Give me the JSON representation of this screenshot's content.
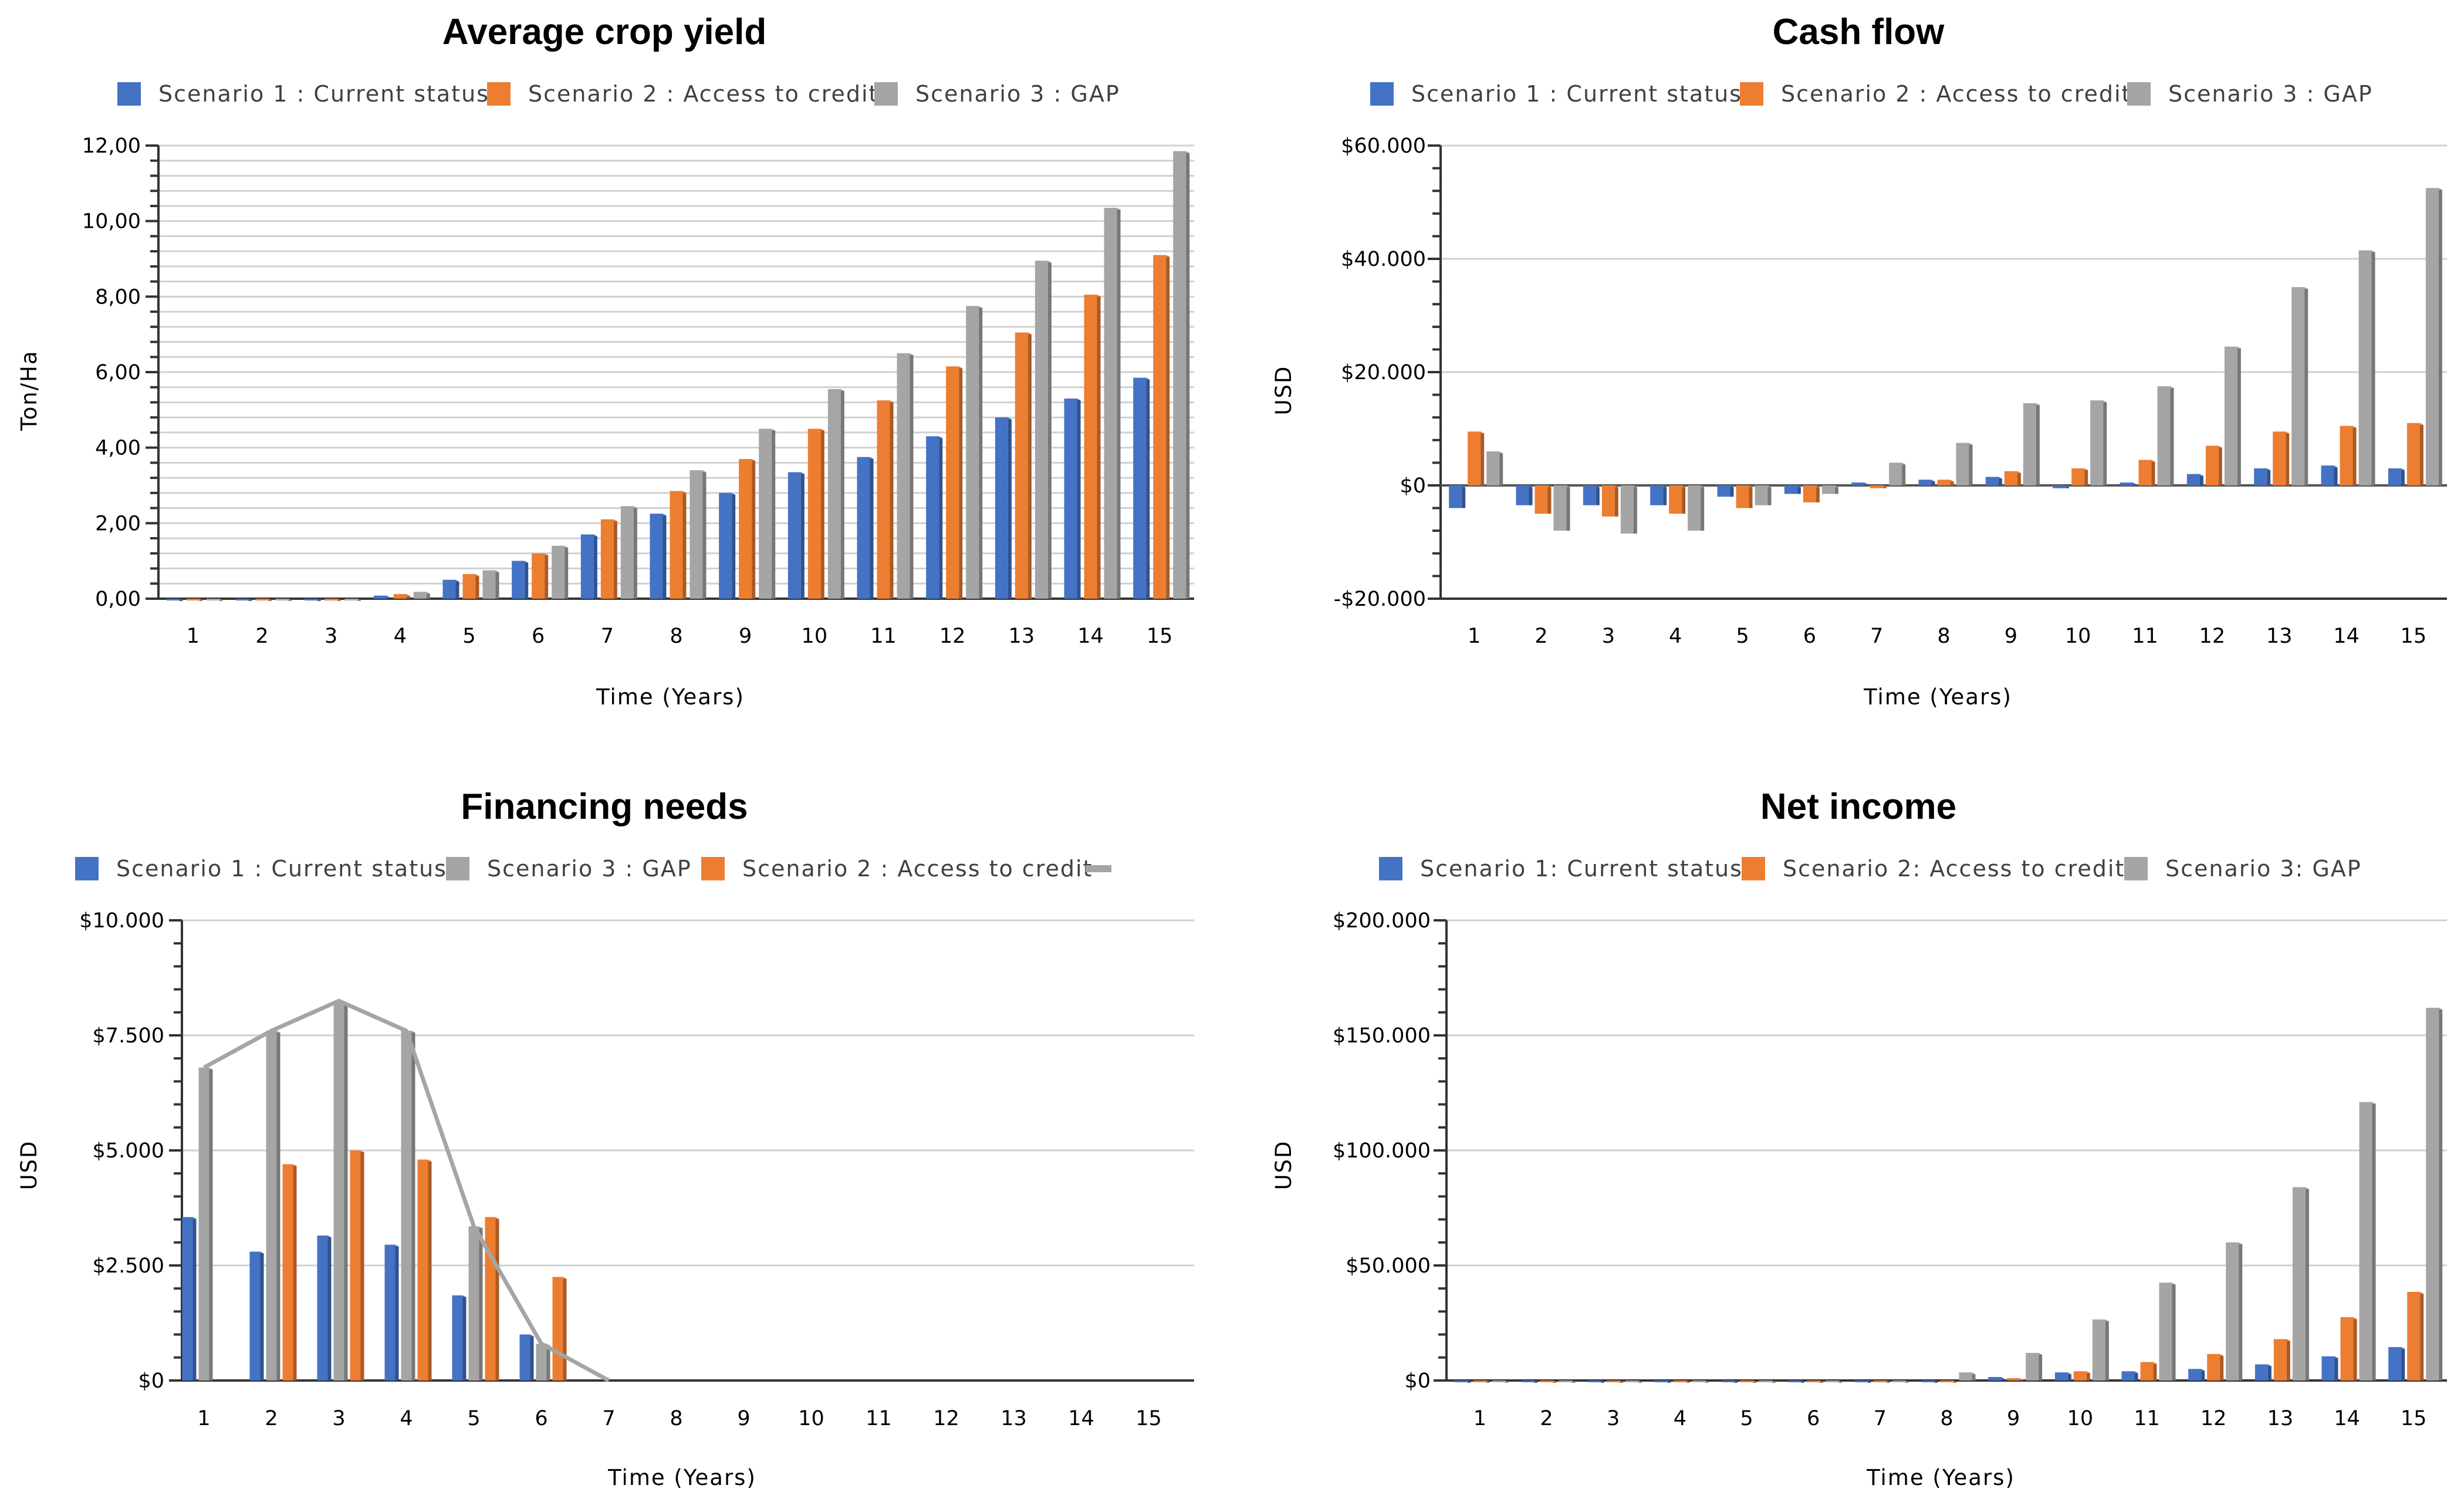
{
  "colors": {
    "scenario1": "#4472C4",
    "scenario2": "#ED7D31",
    "scenario3": "#A5A5A5"
  },
  "chart_data": [
    {
      "id": "yield",
      "type": "bar",
      "title": "Average crop yield",
      "xlabel": "Time (Years)",
      "ylabel": "Ton/Ha",
      "categories": [
        "1",
        "2",
        "3",
        "4",
        "5",
        "6",
        "7",
        "8",
        "9",
        "10",
        "11",
        "12",
        "13",
        "14",
        "15"
      ],
      "ylim": [
        0,
        12
      ],
      "yticks": [
        0,
        2,
        4,
        6,
        8,
        10,
        12
      ],
      "ytick_labels": [
        "0,00",
        "2,00",
        "4,00",
        "6,00",
        "8,00",
        "10,00",
        "12,00"
      ],
      "legend": [
        {
          "label": "Scenario 1 : Current status",
          "color": "#4472C4"
        },
        {
          "label": "Scenario 2 : Access to credit",
          "color": "#ED7D31"
        },
        {
          "label": "Scenario 3 : GAP",
          "color": "#A5A5A5"
        }
      ],
      "series": [
        {
          "name": "Scenario 1 : Current status",
          "color": "#4472C4",
          "values": [
            0,
            0,
            0,
            0.08,
            0.5,
            1.0,
            1.7,
            2.25,
            2.8,
            3.35,
            3.75,
            4.3,
            4.8,
            5.3,
            5.85
          ]
        },
        {
          "name": "Scenario 2 : Access to credit",
          "color": "#ED7D31",
          "values": [
            0,
            0,
            0,
            0.12,
            0.65,
            1.2,
            2.1,
            2.85,
            3.7,
            4.5,
            5.25,
            6.15,
            7.05,
            8.05,
            9.1
          ]
        },
        {
          "name": "Scenario 3 : GAP",
          "color": "#A5A5A5",
          "values": [
            0,
            0,
            0,
            0.18,
            0.75,
            1.4,
            2.45,
            3.4,
            4.5,
            5.55,
            6.5,
            7.75,
            8.95,
            10.35,
            11.85
          ]
        }
      ]
    },
    {
      "id": "cashflow",
      "type": "bar",
      "title": "Cash flow",
      "xlabel": "Time (Years)",
      "ylabel": "USD",
      "categories": [
        "1",
        "2",
        "3",
        "4",
        "5",
        "6",
        "7",
        "8",
        "9",
        "10",
        "11",
        "12",
        "13",
        "14",
        "15"
      ],
      "ylim": [
        -20000,
        60000
      ],
      "yticks": [
        -20000,
        0,
        20000,
        40000,
        60000
      ],
      "ytick_labels": [
        "-$20.000",
        "$0",
        "$20.000",
        "$40.000",
        "$60.000"
      ],
      "legend": [
        {
          "label": "Scenario 1 : Current status",
          "color": "#4472C4"
        },
        {
          "label": "Scenario 2 : Access to credit",
          "color": "#ED7D31"
        },
        {
          "label": "Scenario 3 : GAP",
          "color": "#A5A5A5"
        }
      ],
      "series": [
        {
          "name": "Scenario 1 : Current status",
          "color": "#4472C4",
          "values": [
            -4000,
            -3500,
            -3500,
            -3500,
            -2000,
            -1500,
            500,
            1000,
            1500,
            -500,
            500,
            2000,
            3000,
            3500,
            3000
          ]
        },
        {
          "name": "Scenario 2 : Access to credit",
          "color": "#ED7D31",
          "values": [
            9500,
            -5000,
            -5500,
            -5000,
            -4000,
            -3000,
            -500,
            1000,
            2500,
            3000,
            4500,
            7000,
            9500,
            10500,
            11000
          ]
        },
        {
          "name": "Scenario 3 : GAP",
          "color": "#A5A5A5",
          "values": [
            6000,
            -8000,
            -8500,
            -8000,
            -3500,
            -1500,
            4000,
            7500,
            14500,
            15000,
            17500,
            24500,
            35000,
            41500,
            52500
          ]
        }
      ]
    },
    {
      "id": "financing",
      "type": "bar",
      "title": "Financing needs",
      "xlabel": "Time (Years)",
      "ylabel": "USD",
      "categories": [
        "1",
        "2",
        "3",
        "4",
        "5",
        "6",
        "7",
        "8",
        "9",
        "10",
        "11",
        "12",
        "13",
        "14",
        "15"
      ],
      "ylim": [
        0,
        10000
      ],
      "yticks": [
        0,
        2500,
        5000,
        7500,
        10000
      ],
      "ytick_labels": [
        "$0",
        "$2.500",
        "$5.000",
        "$7.500",
        "$10.000"
      ],
      "legend": [
        {
          "label": "Scenario 1 : Current status",
          "color": "#4472C4"
        },
        {
          "label": "Scenario 3 : GAP",
          "color": "#A5A5A5"
        },
        {
          "label": "Scenario 2 : Access to credit",
          "color": "#ED7D31"
        },
        {
          "label": "",
          "color": "#A5A5A5",
          "kind": "line"
        }
      ],
      "series": [
        {
          "name": "Scenario 1 : Current status",
          "color": "#4472C4",
          "values": [
            3550,
            2800,
            3150,
            2950,
            1850,
            1000,
            0,
            0,
            0,
            0,
            0,
            0,
            0,
            0,
            0
          ]
        },
        {
          "name": "Scenario 3 : GAP",
          "color": "#A5A5A5",
          "values": [
            6800,
            7600,
            8250,
            7600,
            3350,
            800,
            0,
            0,
            0,
            0,
            0,
            0,
            0,
            0,
            0
          ]
        },
        {
          "name": "Scenario 2 : Access to credit",
          "color": "#ED7D31",
          "values": [
            0,
            4700,
            5000,
            4800,
            3550,
            2250,
            0,
            0,
            0,
            0,
            0,
            0,
            0,
            0,
            0
          ]
        }
      ],
      "line": {
        "color": "#A5A5A5",
        "values": [
          6800,
          7600,
          8250,
          7600,
          3350,
          800,
          0,
          null,
          null,
          null,
          null,
          null,
          null,
          null,
          null
        ]
      }
    },
    {
      "id": "netincome",
      "type": "bar",
      "title": "Net income",
      "xlabel": "Time (Years)",
      "ylabel": "USD",
      "categories": [
        "1",
        "2",
        "3",
        "4",
        "5",
        "6",
        "7",
        "8",
        "9",
        "10",
        "11",
        "12",
        "13",
        "14",
        "15"
      ],
      "ylim": [
        0,
        200000
      ],
      "yticks": [
        0,
        50000,
        100000,
        150000,
        200000
      ],
      "ytick_labels": [
        "$0",
        "$50.000",
        "$100.000",
        "$150.000",
        "$200.000"
      ],
      "legend": [
        {
          "label": "Scenario 1: Current status",
          "color": "#4472C4"
        },
        {
          "label": "Scenario 2: Access to credit",
          "color": "#ED7D31"
        },
        {
          "label": "Scenario 3: GAP",
          "color": "#A5A5A5"
        }
      ],
      "series": [
        {
          "name": "Scenario 1: Current status",
          "color": "#4472C4",
          "values": [
            0,
            0,
            0,
            0,
            0,
            0,
            0,
            0,
            1500,
            3500,
            4000,
            5000,
            7000,
            10500,
            14500
          ]
        },
        {
          "name": "Scenario 2: Access to credit",
          "color": "#ED7D31",
          "values": [
            0,
            0,
            0,
            0,
            0,
            0,
            0,
            0,
            1000,
            4000,
            8000,
            11500,
            18000,
            27500,
            38500
          ]
        },
        {
          "name": "Scenario 3: GAP",
          "color": "#A5A5A5",
          "values": [
            0,
            0,
            0,
            0,
            0,
            0,
            0,
            3500,
            12000,
            26500,
            42500,
            60000,
            84000,
            121000,
            162000
          ]
        }
      ]
    }
  ]
}
